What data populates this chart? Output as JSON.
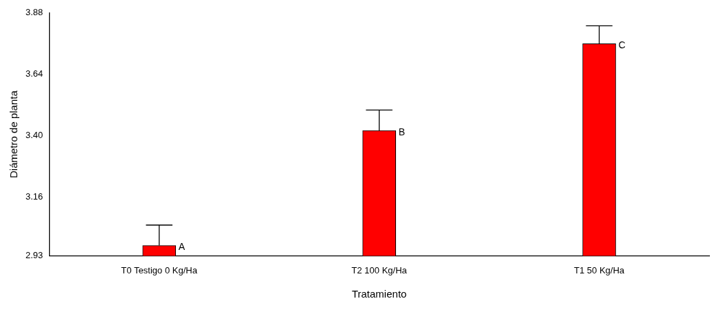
{
  "chart_data": {
    "type": "bar",
    "xlabel": "Tratamiento",
    "ylabel": "Diámetro de planta",
    "categories": [
      "T0 Testigo 0 Kg/Ha",
      "T2 100 Kg/Ha",
      "T1 50 Kg/Ha"
    ],
    "values": [
      2.97,
      3.42,
      3.76
    ],
    "color": "#ff0000",
    "errors": [
      [
        2.97,
        3.05
      ],
      [
        3.42,
        3.5
      ],
      [
        3.76,
        3.83
      ]
    ],
    "ylim": [
      2.93,
      3.88
    ],
    "yticks": [
      2.93,
      3.16,
      {
        "value": 3.4,
        "label": "3.40"
      },
      3.64,
      3.88
    ],
    "grid": false,
    "legend": false,
    "annotations": [
      {
        "text": "A",
        "x": "T0 Testigo 0 Kg/Ha",
        "y": 2.97
      },
      {
        "text": "B",
        "x": "T2 100 Kg/Ha",
        "y": 3.42
      },
      {
        "text": "C",
        "x": "T1 50 Kg/Ha",
        "y": 3.76
      }
    ]
  }
}
